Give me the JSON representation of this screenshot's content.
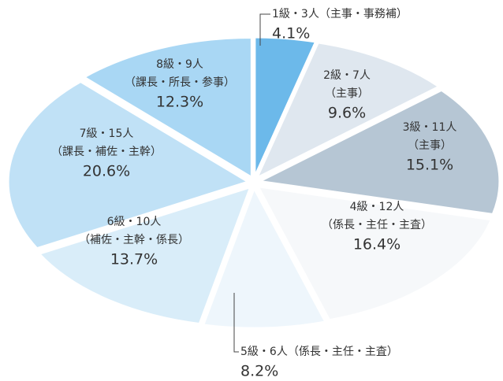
{
  "chart_data": {
    "type": "pie",
    "categories": [
      [
        "1級・3人（主事・事務補）"
      ],
      [
        "2級・7人",
        "（主事）"
      ],
      [
        "3級・11人",
        "（主事）"
      ],
      [
        "4級・12人",
        "（係長・主任・主査）"
      ],
      [
        "5級・6人（係長・主任・主査）"
      ],
      [
        "6級・10人",
        "（補佐・主幹・係長）"
      ],
      [
        "7級・15人",
        "（課長・補佐・主幹）"
      ],
      [
        "8級・9人",
        "（課長・所長・参事）"
      ]
    ],
    "values": [
      4.1,
      9.6,
      15.1,
      16.4,
      8.2,
      13.7,
      20.6,
      12.3
    ],
    "value_labels": [
      "4.1%",
      "9.6%",
      "15.1%",
      "16.4%",
      "8.2%",
      "13.7%",
      "20.6%",
      "12.3%"
    ],
    "colors": [
      "#6cb9ea",
      "#dfe7ef",
      "#b6c6d4",
      "#f6f8fa",
      "#eef6fc",
      "#d9edf9",
      "#c0e1f6",
      "#a9d7f4"
    ]
  }
}
